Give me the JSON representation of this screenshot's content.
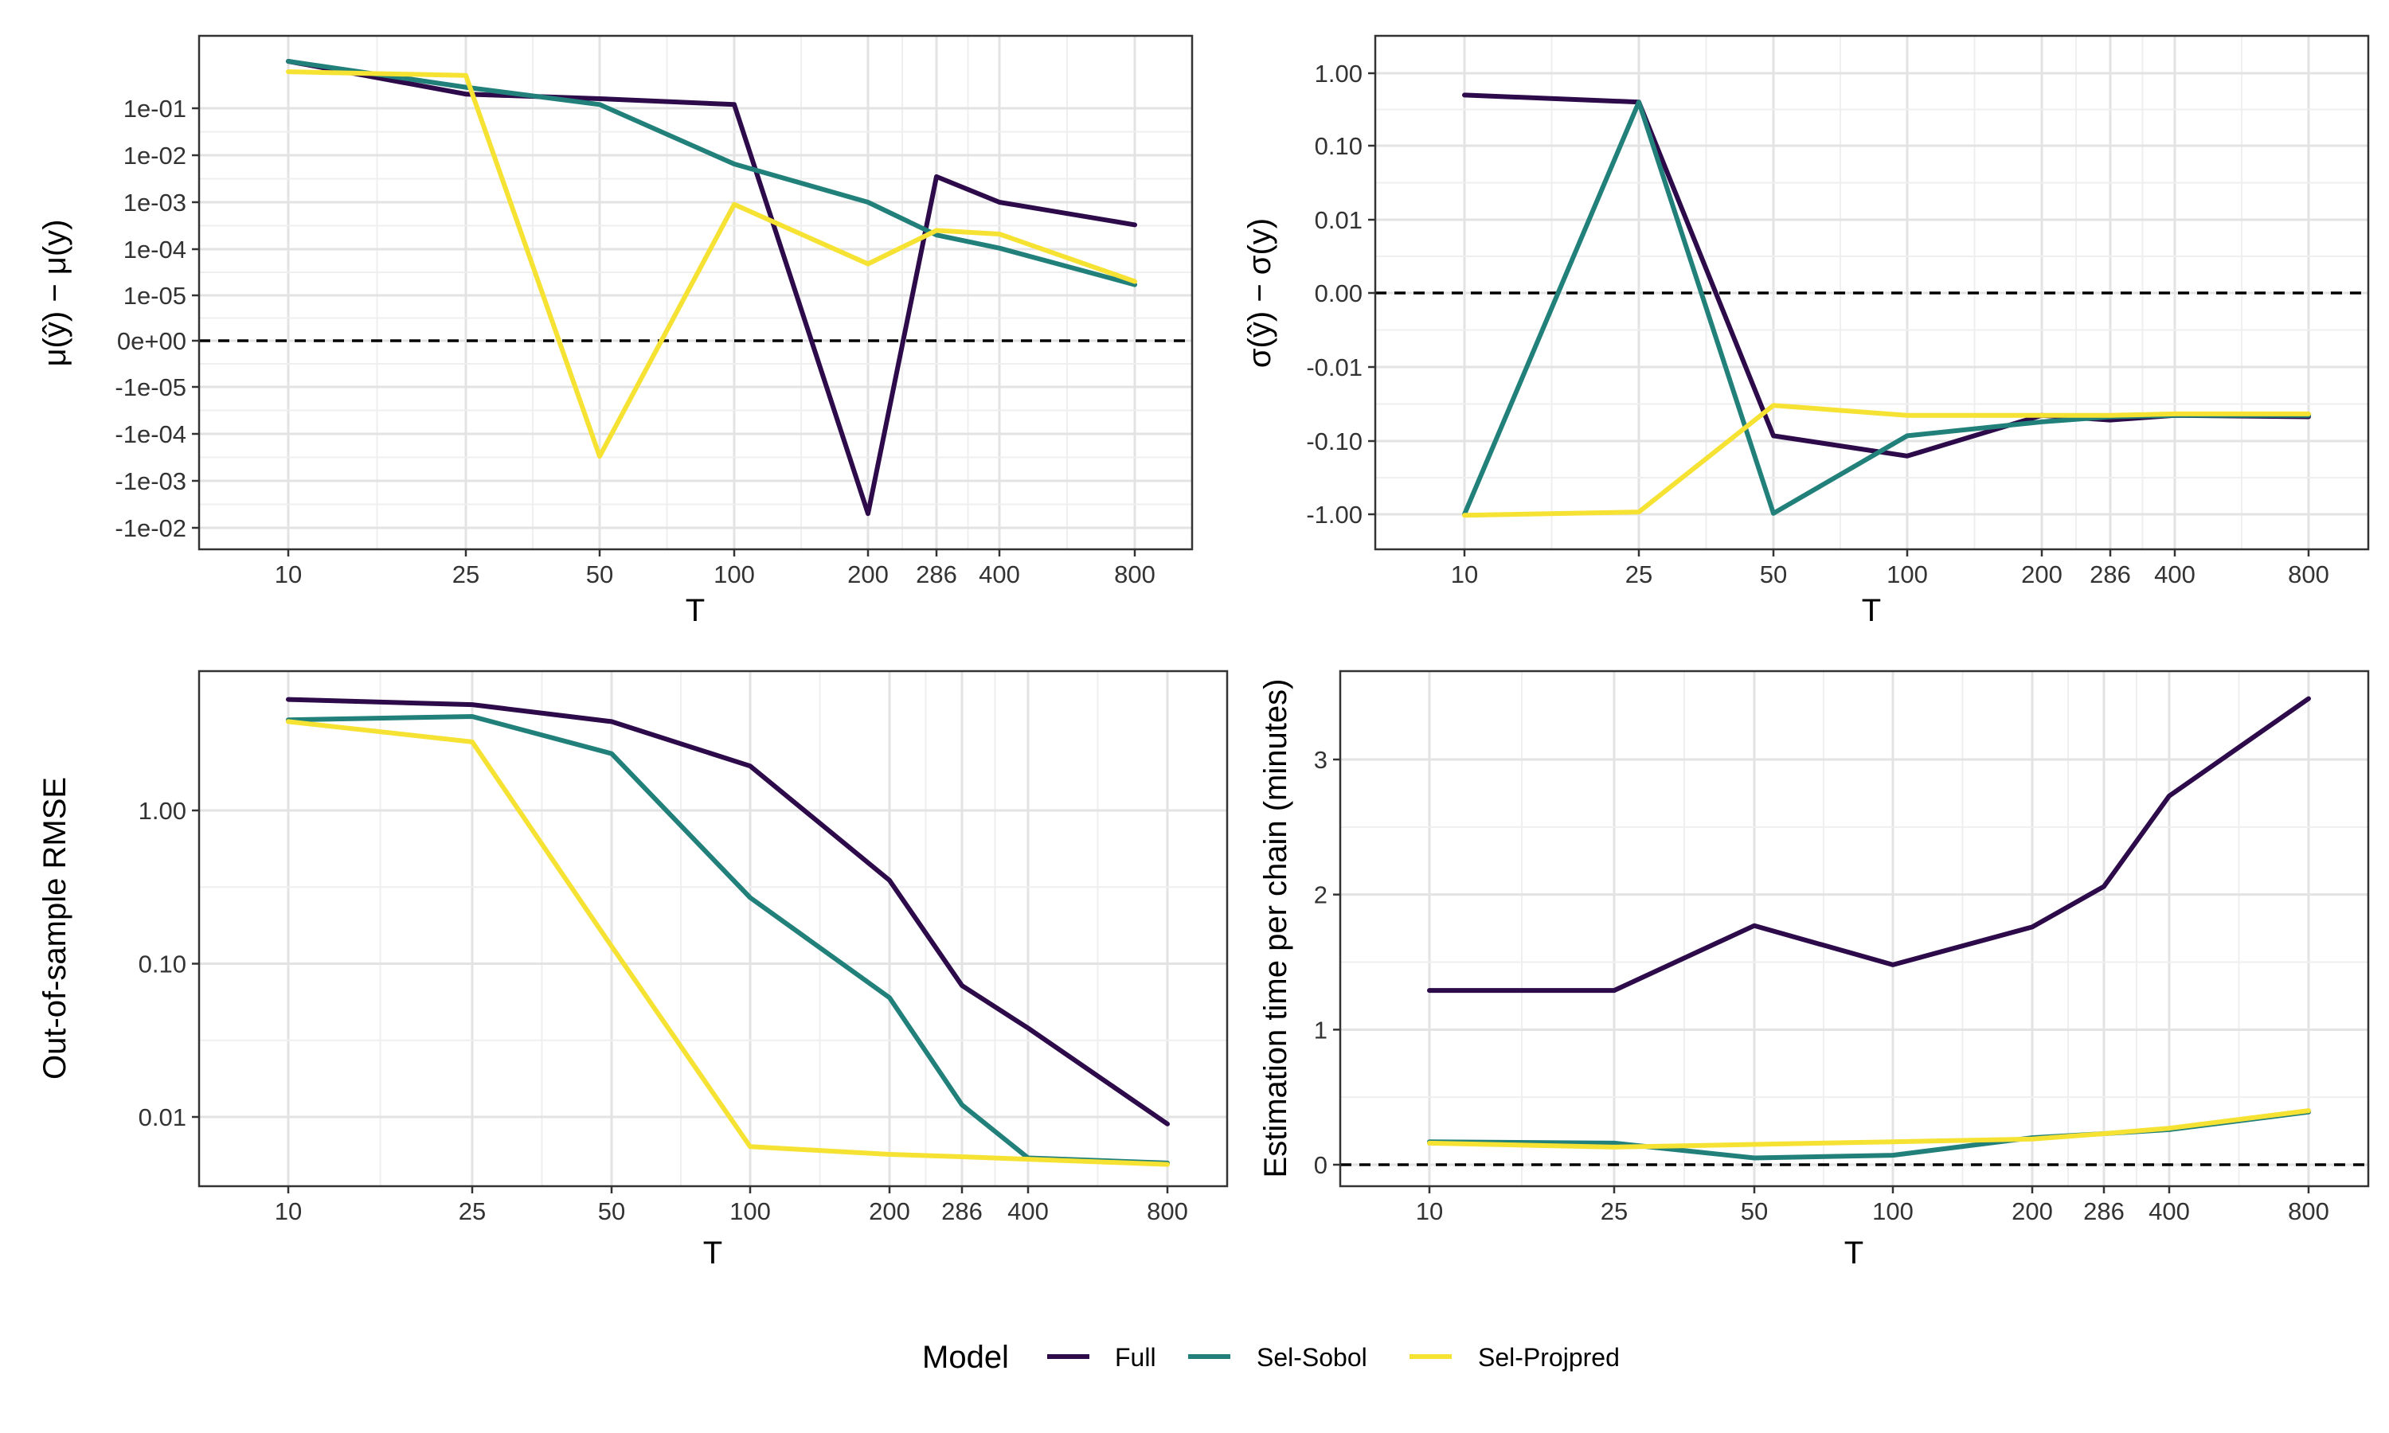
{
  "colors": {
    "Full": "#2d0a4a",
    "Sel-Sobol": "#21807a",
    "Sel-Projpred": "#f6e232"
  },
  "legend": {
    "title": "Model",
    "entries": [
      "Full",
      "Sel-Sobol",
      "Sel-Projpred"
    ]
  },
  "chart_data": [
    {
      "type": "line",
      "id": "mean",
      "xlabel": "T",
      "ylabel": "μ(ŷ) − μ(y)",
      "xscale": "log",
      "x": [
        10,
        25,
        50,
        100,
        200,
        286,
        400,
        800
      ],
      "x_tick_labels": [
        "10",
        "25",
        "50",
        "100",
        "200",
        "286",
        "400",
        "800"
      ],
      "yscale": "signed-log",
      "y_tick_labels": [
        "1e-01",
        "1e-02",
        "1e-03",
        "1e-04",
        "1e-05",
        "0e+00",
        "-1e-05",
        "-1e-04",
        "-1e-03",
        "-1e-02"
      ],
      "y_tick_values": [
        0.1,
        0.01,
        0.001,
        0.0001,
        1e-05,
        0,
        -1e-05,
        -0.0001,
        -0.001,
        -0.01
      ],
      "reference_line": 0,
      "series": [
        {
          "name": "Full",
          "values": [
            1.0,
            0.2,
            0.16,
            0.12,
            -0.005,
            0.0035,
            0.001,
            0.00033
          ]
        },
        {
          "name": "Sel-Sobol",
          "values": [
            1.0,
            0.28,
            0.12,
            0.0065,
            0.001,
            0.0002,
            0.000105,
            1.7e-05
          ]
        },
        {
          "name": "Sel-Projpred",
          "values": [
            0.6,
            0.5,
            -0.0003,
            0.0009,
            4.8e-05,
            0.00025,
            0.00021,
            2e-05
          ]
        }
      ]
    },
    {
      "type": "line",
      "id": "sd",
      "xlabel": "T",
      "ylabel": "σ(ŷ) − σ(y)",
      "xscale": "log",
      "x": [
        10,
        25,
        50,
        100,
        200,
        286,
        400,
        800
      ],
      "x_tick_labels": [
        "10",
        "25",
        "50",
        "100",
        "200",
        "286",
        "400",
        "800"
      ],
      "yscale": "signed-log",
      "y_tick_labels": [
        "1.00",
        "0.10",
        "0.01",
        "0.00",
        "-0.01",
        "-0.10",
        "-1.00"
      ],
      "y_tick_values": [
        1,
        0.1,
        0.01,
        0,
        -0.01,
        -0.1,
        -1
      ],
      "reference_line": 0,
      "series": [
        {
          "name": "Full",
          "values": [
            0.5,
            0.4,
            -0.085,
            -0.16,
            -0.045,
            -0.052,
            -0.045,
            -0.047
          ]
        },
        {
          "name": "Sel-Sobol",
          "values": [
            -1.0,
            0.4,
            -0.97,
            -0.085,
            -0.055,
            -0.047,
            -0.045,
            -0.045
          ]
        },
        {
          "name": "Sel-Projpred",
          "values": [
            -1.03,
            -0.93,
            -0.033,
            -0.045,
            -0.045,
            -0.045,
            -0.043,
            -0.043
          ]
        }
      ]
    },
    {
      "type": "line",
      "id": "rmse",
      "xlabel": "T",
      "ylabel": "Out-of-sample RMSE",
      "xscale": "log",
      "x": [
        10,
        25,
        50,
        100,
        200,
        286,
        400,
        800
      ],
      "x_tick_labels": [
        "10",
        "25",
        "50",
        "100",
        "200",
        "286",
        "400",
        "800"
      ],
      "yscale": "log",
      "y_tick_labels": [
        "1.00",
        "0.10",
        "0.01"
      ],
      "y_tick_values": [
        1,
        0.1,
        0.01
      ],
      "series": [
        {
          "name": "Full",
          "values": [
            5.3,
            4.9,
            3.8,
            1.95,
            0.35,
            0.072,
            0.038,
            0.009
          ]
        },
        {
          "name": "Sel-Sobol",
          "values": [
            3.9,
            4.1,
            2.35,
            0.27,
            0.06,
            0.012,
            0.0054,
            0.005
          ]
        },
        {
          "name": "Sel-Projpred",
          "values": [
            3.8,
            2.8,
            0.13,
            0.0064,
            0.0057,
            0.0055,
            0.0053,
            0.0049
          ]
        }
      ]
    },
    {
      "type": "line",
      "id": "time",
      "xlabel": "T",
      "ylabel": "Estimation time per chain (minutes)",
      "xscale": "log",
      "x": [
        10,
        25,
        50,
        100,
        200,
        286,
        400,
        800
      ],
      "x_tick_labels": [
        "10",
        "25",
        "50",
        "100",
        "200",
        "286",
        "400",
        "800"
      ],
      "yscale": "linear",
      "y_tick_labels": [
        "3",
        "2",
        "1",
        "0"
      ],
      "y_tick_values": [
        3,
        2,
        1,
        0
      ],
      "ylim": [
        -0.2,
        3.6
      ],
      "reference_line": 0,
      "series": [
        {
          "name": "Full",
          "values": [
            1.29,
            1.29,
            1.77,
            1.48,
            1.76,
            2.06,
            2.73,
            3.45
          ]
        },
        {
          "name": "Sel-Sobol",
          "values": [
            0.17,
            0.16,
            0.05,
            0.07,
            0.2,
            0.23,
            0.26,
            0.39
          ]
        },
        {
          "name": "Sel-Projpred",
          "values": [
            0.16,
            0.13,
            0.15,
            0.17,
            0.19,
            0.23,
            0.27,
            0.4
          ]
        }
      ]
    }
  ]
}
